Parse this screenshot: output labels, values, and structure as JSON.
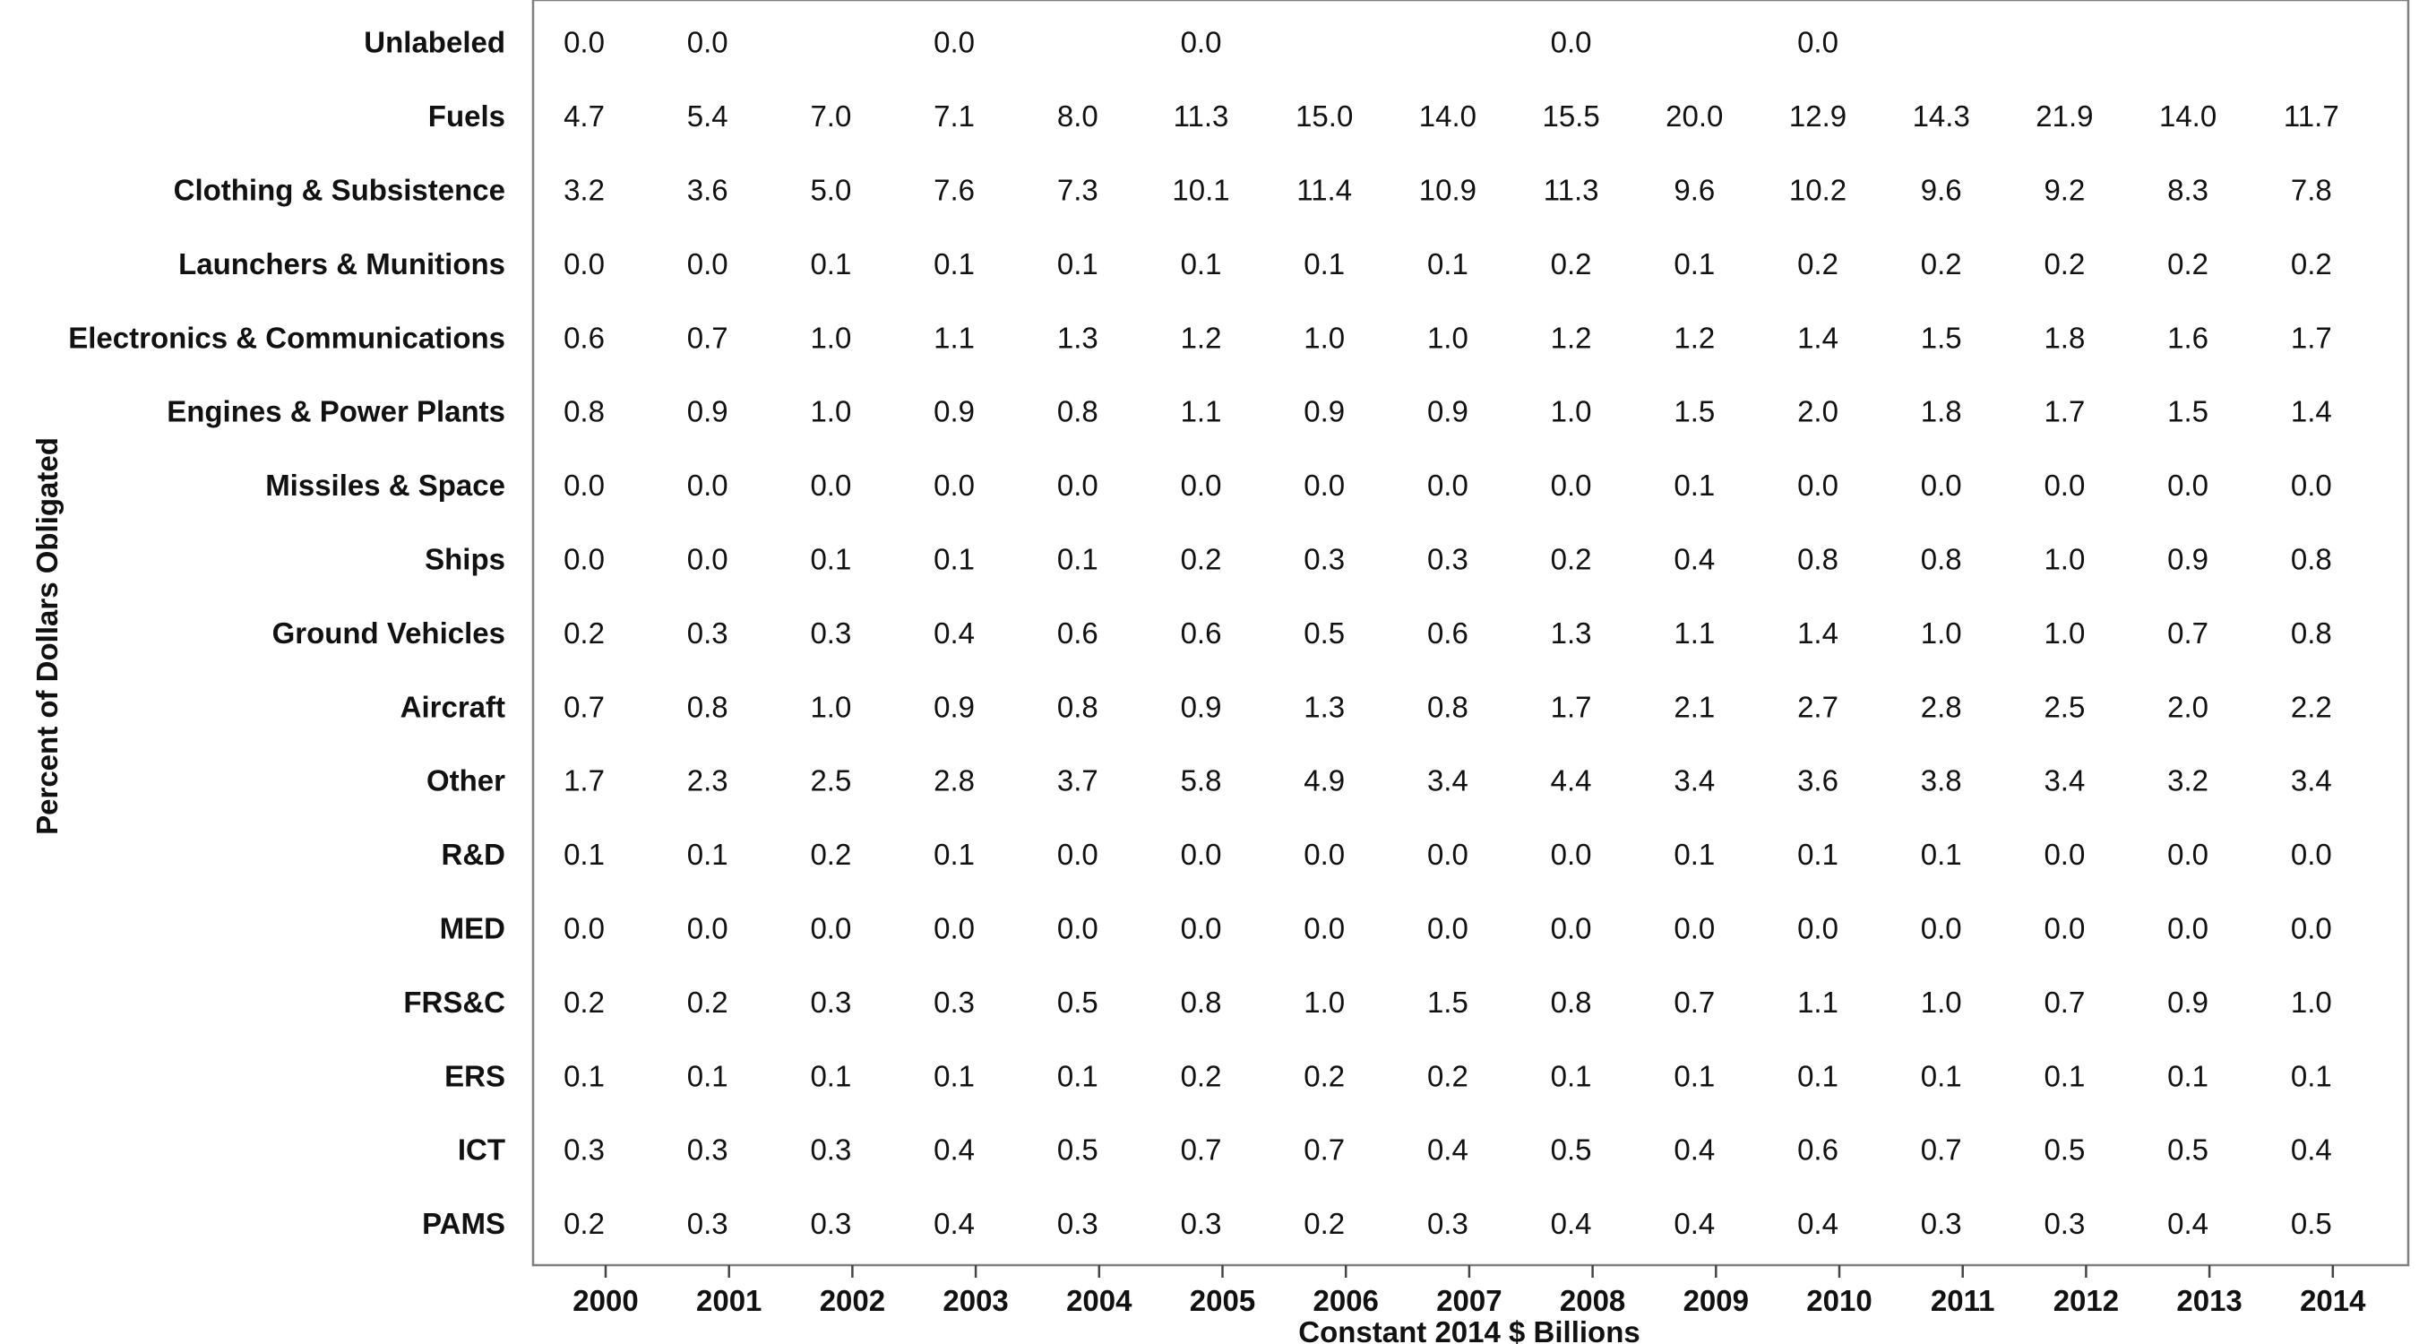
{
  "chart_data": {
    "type": "table",
    "title": "",
    "xlabel": "Constant 2014 $ Billions",
    "ylabel": "Percent of Dollars Obligated",
    "grid": false,
    "legend": "none",
    "columns": [
      "2000",
      "2001",
      "2002",
      "2003",
      "2004",
      "2005",
      "2006",
      "2007",
      "2008",
      "2009",
      "2010",
      "2011",
      "2012",
      "2013",
      "2014"
    ],
    "rows": [
      {
        "label": "Unlabeled",
        "values": [
          "0.0",
          "0.0",
          null,
          "0.0",
          null,
          "0.0",
          null,
          null,
          "0.0",
          null,
          "0.0",
          null,
          null,
          null,
          null
        ]
      },
      {
        "label": "Fuels",
        "values": [
          "4.7",
          "5.4",
          "7.0",
          "7.1",
          "8.0",
          "11.3",
          "15.0",
          "14.0",
          "15.5",
          "20.0",
          "12.9",
          "14.3",
          "21.9",
          "14.0",
          "11.7"
        ]
      },
      {
        "label": "Clothing & Subsistence",
        "values": [
          "3.2",
          "3.6",
          "5.0",
          "7.6",
          "7.3",
          "10.1",
          "11.4",
          "10.9",
          "11.3",
          "9.6",
          "10.2",
          "9.6",
          "9.2",
          "8.3",
          "7.8"
        ]
      },
      {
        "label": "Launchers & Munitions",
        "values": [
          "0.0",
          "0.0",
          "0.1",
          "0.1",
          "0.1",
          "0.1",
          "0.1",
          "0.1",
          "0.2",
          "0.1",
          "0.2",
          "0.2",
          "0.2",
          "0.2",
          "0.2"
        ]
      },
      {
        "label": "Electronics & Communications",
        "values": [
          "0.6",
          "0.7",
          "1.0",
          "1.1",
          "1.3",
          "1.2",
          "1.0",
          "1.0",
          "1.2",
          "1.2",
          "1.4",
          "1.5",
          "1.8",
          "1.6",
          "1.7"
        ]
      },
      {
        "label": "Engines & Power Plants",
        "values": [
          "0.8",
          "0.9",
          "1.0",
          "0.9",
          "0.8",
          "1.1",
          "0.9",
          "0.9",
          "1.0",
          "1.5",
          "2.0",
          "1.8",
          "1.7",
          "1.5",
          "1.4"
        ]
      },
      {
        "label": "Missiles & Space",
        "values": [
          "0.0",
          "0.0",
          "0.0",
          "0.0",
          "0.0",
          "0.0",
          "0.0",
          "0.0",
          "0.0",
          "0.1",
          "0.0",
          "0.0",
          "0.0",
          "0.0",
          "0.0"
        ]
      },
      {
        "label": "Ships",
        "values": [
          "0.0",
          "0.0",
          "0.1",
          "0.1",
          "0.1",
          "0.2",
          "0.3",
          "0.3",
          "0.2",
          "0.4",
          "0.8",
          "0.8",
          "1.0",
          "0.9",
          "0.8"
        ]
      },
      {
        "label": "Ground Vehicles",
        "values": [
          "0.2",
          "0.3",
          "0.3",
          "0.4",
          "0.6",
          "0.6",
          "0.5",
          "0.6",
          "1.3",
          "1.1",
          "1.4",
          "1.0",
          "1.0",
          "0.7",
          "0.8"
        ]
      },
      {
        "label": "Aircraft",
        "values": [
          "0.7",
          "0.8",
          "1.0",
          "0.9",
          "0.8",
          "0.9",
          "1.3",
          "0.8",
          "1.7",
          "2.1",
          "2.7",
          "2.8",
          "2.5",
          "2.0",
          "2.2"
        ]
      },
      {
        "label": "Other",
        "values": [
          "1.7",
          "2.3",
          "2.5",
          "2.8",
          "3.7",
          "5.8",
          "4.9",
          "3.4",
          "4.4",
          "3.4",
          "3.6",
          "3.8",
          "3.4",
          "3.2",
          "3.4"
        ]
      },
      {
        "label": "R&D",
        "values": [
          "0.1",
          "0.1",
          "0.2",
          "0.1",
          "0.0",
          "0.0",
          "0.0",
          "0.0",
          "0.0",
          "0.1",
          "0.1",
          "0.1",
          "0.0",
          "0.0",
          "0.0"
        ]
      },
      {
        "label": "MED",
        "values": [
          "0.0",
          "0.0",
          "0.0",
          "0.0",
          "0.0",
          "0.0",
          "0.0",
          "0.0",
          "0.0",
          "0.0",
          "0.0",
          "0.0",
          "0.0",
          "0.0",
          "0.0"
        ]
      },
      {
        "label": "FRS&C",
        "values": [
          "0.2",
          "0.2",
          "0.3",
          "0.3",
          "0.5",
          "0.8",
          "1.0",
          "1.5",
          "0.8",
          "0.7",
          "1.1",
          "1.0",
          "0.7",
          "0.9",
          "1.0"
        ]
      },
      {
        "label": "ERS",
        "values": [
          "0.1",
          "0.1",
          "0.1",
          "0.1",
          "0.1",
          "0.2",
          "0.2",
          "0.2",
          "0.1",
          "0.1",
          "0.1",
          "0.1",
          "0.1",
          "0.1",
          "0.1"
        ]
      },
      {
        "label": "ICT",
        "values": [
          "0.3",
          "0.3",
          "0.3",
          "0.4",
          "0.5",
          "0.7",
          "0.7",
          "0.4",
          "0.5",
          "0.4",
          "0.6",
          "0.7",
          "0.5",
          "0.5",
          "0.4"
        ]
      },
      {
        "label": "PAMS",
        "values": [
          "0.2",
          "0.3",
          "0.3",
          "0.4",
          "0.3",
          "0.3",
          "0.2",
          "0.3",
          "0.4",
          "0.4",
          "0.4",
          "0.3",
          "0.3",
          "0.4",
          "0.5"
        ]
      }
    ]
  }
}
